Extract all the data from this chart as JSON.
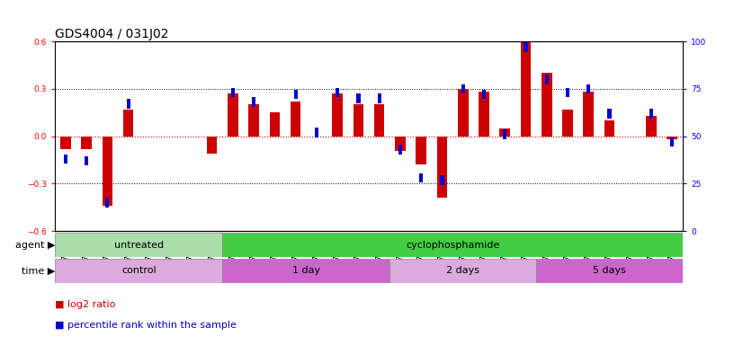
{
  "title": "GDS4004 / 031J02",
  "samples": [
    "GSM677940",
    "GSM677941",
    "GSM677942",
    "GSM677943",
    "GSM677944",
    "GSM677945",
    "GSM677946",
    "GSM677947",
    "GSM677948",
    "GSM677949",
    "GSM677950",
    "GSM677951",
    "GSM677952",
    "GSM677953",
    "GSM677954",
    "GSM677955",
    "GSM677956",
    "GSM677957",
    "GSM677958",
    "GSM677959",
    "GSM677960",
    "GSM677961",
    "GSM677962",
    "GSM677963",
    "GSM677964",
    "GSM677965",
    "GSM677966",
    "GSM677967",
    "GSM677968",
    "GSM677969"
  ],
  "log2_ratio": [
    -0.08,
    -0.08,
    -0.44,
    0.17,
    0.0,
    0.0,
    0.0,
    -0.11,
    0.27,
    0.2,
    0.15,
    0.22,
    0.0,
    0.27,
    0.2,
    0.2,
    -0.09,
    -0.18,
    -0.39,
    0.3,
    0.28,
    0.05,
    0.6,
    0.4,
    0.17,
    0.28,
    0.1,
    0.0,
    0.13,
    -0.02
  ],
  "percentile": [
    38,
    37,
    15,
    67,
    0,
    0,
    0,
    0,
    73,
    68,
    0,
    72,
    52,
    73,
    70,
    70,
    43,
    28,
    27,
    75,
    72,
    51,
    97,
    80,
    73,
    75,
    62,
    0,
    62,
    47
  ],
  "ylim_left": [
    -0.6,
    0.6
  ],
  "ylim_right": [
    0,
    100
  ],
  "yticks_left": [
    -0.6,
    -0.3,
    0.0,
    0.3,
    0.6
  ],
  "yticks_right": [
    0,
    25,
    50,
    75,
    100
  ],
  "agent_groups": [
    {
      "label": "untreated",
      "start": 0,
      "end": 7,
      "color": "#aaddaa"
    },
    {
      "label": "cyclophosphamide",
      "start": 8,
      "end": 29,
      "color": "#44cc44"
    }
  ],
  "time_groups": [
    {
      "label": "control",
      "start": 0,
      "end": 7,
      "color": "#ddaadd"
    },
    {
      "label": "1 day",
      "start": 8,
      "end": 15,
      "color": "#cc66cc"
    },
    {
      "label": "2 days",
      "start": 16,
      "end": 22,
      "color": "#ddaadd"
    },
    {
      "label": "5 days",
      "start": 23,
      "end": 29,
      "color": "#cc66cc"
    }
  ],
  "bar_color_red": "#cc0000",
  "bar_color_blue": "#0000cc",
  "bar_width": 0.5,
  "background_color": "#ffffff",
  "title_fontsize": 10,
  "tick_fontsize": 6.5,
  "label_fontsize": 8,
  "legend_fontsize": 8
}
